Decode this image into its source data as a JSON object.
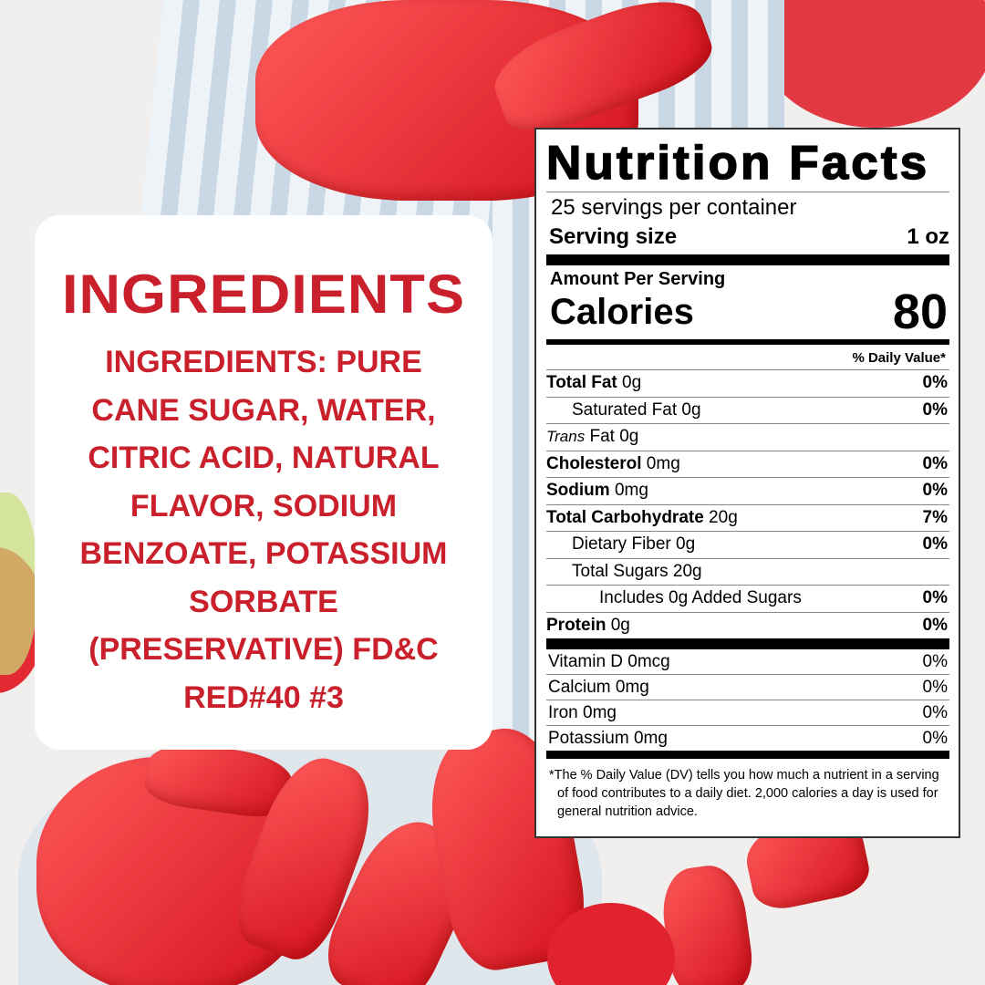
{
  "ingredients": {
    "heading": "INGREDIENTS",
    "text": "INGREDIENTS: PURE CANE SUGAR, WATER, CITRIC ACID, NATURAL FLAVOR, SODIUM BENZOATE, POTASSIUM SORBATE (PRESERVATIVE) FD&C RED#40 #3",
    "color": "#c9202b"
  },
  "nutrition": {
    "title": "Nutrition Facts",
    "servings": "25 servings per container",
    "serving_size_label": "Serving size",
    "serving_size_value": "1 oz",
    "amount_per_serving": "Amount Per Serving",
    "calories_label": "Calories",
    "calories_value": "80",
    "daily_value_header": "% Daily Value*",
    "rows": [
      {
        "bold": "Total Fat",
        "amount": " 0g",
        "pct": "0%"
      },
      {
        "bold": "",
        "amount": "Saturated Fat 0g",
        "pct": "0%"
      },
      {
        "italic": "Trans",
        "amount": " Fat 0g",
        "pct": ""
      },
      {
        "bold": "Cholesterol",
        "amount": " 0mg",
        "pct": "0%"
      },
      {
        "bold": "Sodium",
        "amount": " 0mg",
        "pct": "0%"
      },
      {
        "bold": "Total Carbohydrate",
        "amount": " 20g",
        "pct": "7%"
      },
      {
        "bold": "",
        "amount": "Dietary Fiber 0g",
        "pct": "0%"
      },
      {
        "bold": "",
        "amount": "Total Sugars 20g",
        "pct": ""
      },
      {
        "bold": "",
        "amount": "Includes 0g Added Sugars",
        "pct": "0%"
      },
      {
        "bold": "Protein",
        "amount": " 0g",
        "pct": "0%"
      }
    ],
    "vitamins": [
      {
        "name": "Vitamin D 0mcg",
        "pct": "0%"
      },
      {
        "name": "Calcium 0mg",
        "pct": "0%"
      },
      {
        "name": "Iron 0mg",
        "pct": "0%"
      },
      {
        "name": "Potassium 0mg",
        "pct": "0%"
      }
    ],
    "footnote": "*The % Daily Value (DV) tells you how much a nutrient in a serving of food contributes to a daily diet. 2,000 calories a day is used for general nutrition advice."
  }
}
